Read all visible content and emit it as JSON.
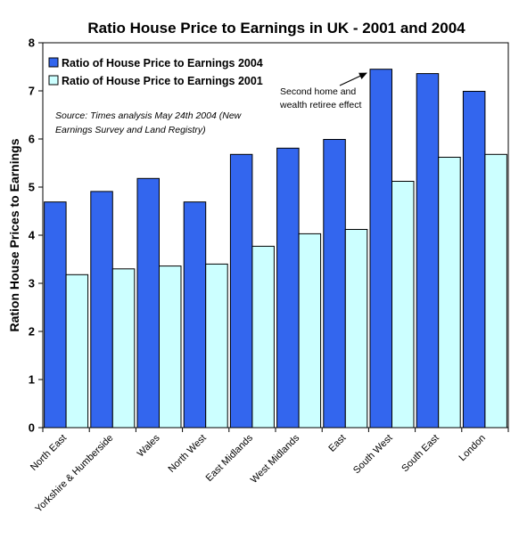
{
  "chart_data": {
    "type": "bar",
    "title": "Ratio House Price to Earnings in UK - 2001 and 2004",
    "xlabel": "",
    "ylabel": "Ration House Prices to Earnings",
    "ylim": [
      0,
      8
    ],
    "yticks": [
      0,
      1,
      2,
      3,
      4,
      5,
      6,
      7,
      8
    ],
    "grid": false,
    "legend_position": "top-left",
    "categories": [
      "North East",
      "Yorkshire & Humberside",
      "Wales",
      "North West",
      "East Midlands",
      "West Midlands",
      "East",
      "South West",
      "South East",
      "London"
    ],
    "series": [
      {
        "name": "Ratio of House Price to Earnings 2004",
        "color": "#3366ee",
        "values": [
          4.69,
          4.91,
          5.18,
          4.69,
          5.68,
          5.81,
          5.99,
          7.45,
          7.36,
          6.99
        ]
      },
      {
        "name": "Ratio of House Price to Earnings 2001",
        "color": "#ccffff",
        "values": [
          3.18,
          3.3,
          3.36,
          3.4,
          3.77,
          4.03,
          4.12,
          5.12,
          5.62,
          5.68
        ]
      }
    ],
    "source_note": [
      "Source: Times analysis May 24th 2004 (New",
      "Earnings Survey and Land Registry)"
    ],
    "annotation": {
      "lines": [
        "Second home and",
        "wealth retiree effect"
      ],
      "points_to": "South West"
    }
  }
}
